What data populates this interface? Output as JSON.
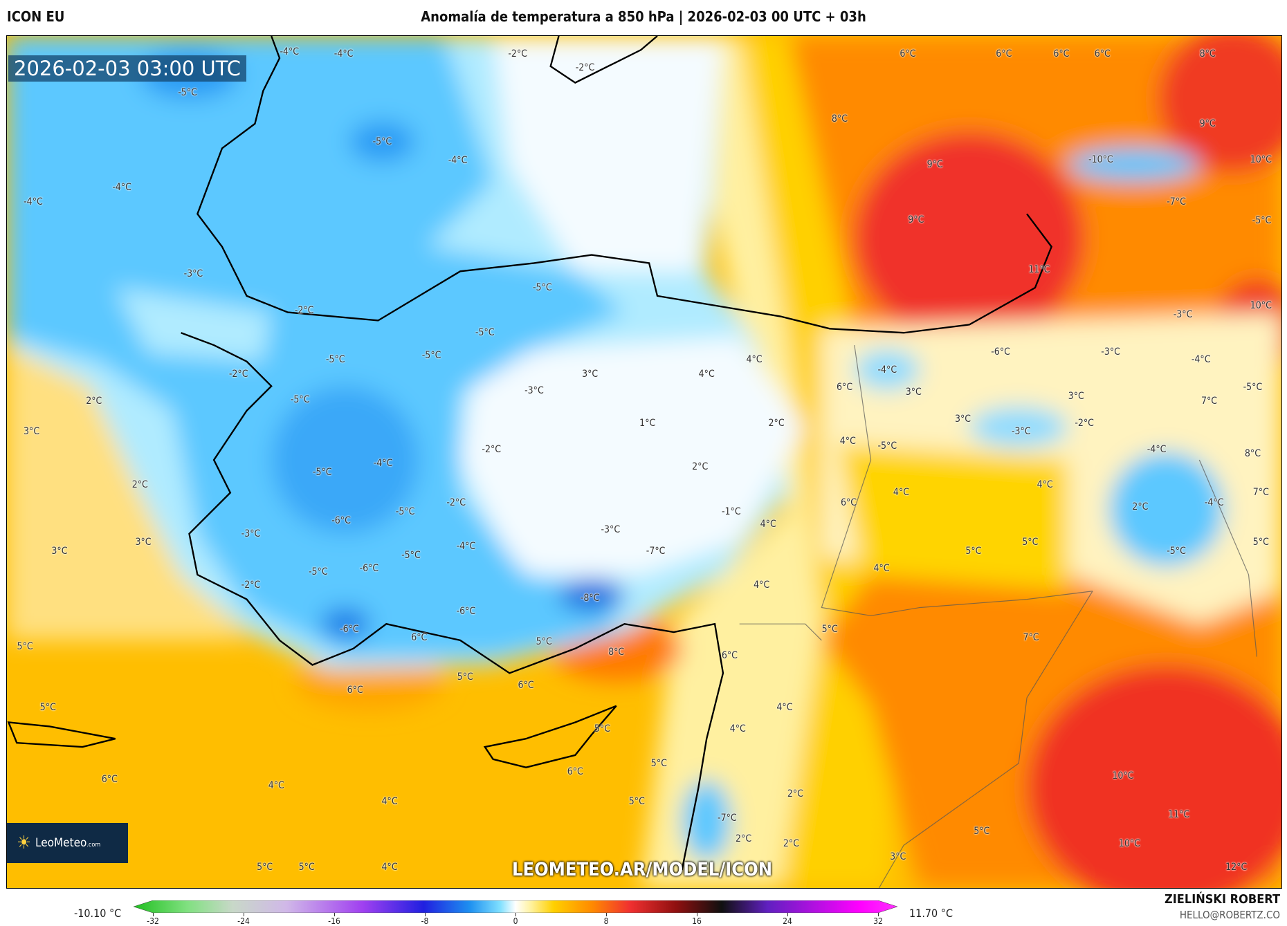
{
  "header": {
    "model": "ICON EU",
    "title": "Anomalía de temperatura a 850 hPa | 2026-02-03 00 UTC + 03h"
  },
  "map": {
    "valid_time": "2026-02-03 03:00 UTC",
    "watermark": "LEOMETEO.AR/MODEL/ICON",
    "logo": {
      "brand": "LeoMeteo",
      "suffix": ".com"
    },
    "labels": [
      "-4°C",
      "-4°C",
      "-2°C",
      "-2°C",
      "6°C",
      "6°C",
      "6°C",
      "6°C",
      "8°C",
      "-5°C",
      "-5°C",
      "-4°C",
      "8°C",
      "9°C",
      "9°C",
      "-10°C",
      "10°C",
      "-4°C",
      "-4°C",
      "-7°C",
      "-5°C",
      "9°C",
      "-3°C",
      "11°C",
      "-5°C",
      "-2°C",
      "10°C",
      "-3°C",
      "-5°C",
      "-5°C",
      "-5°C",
      "4°C",
      "-6°C",
      "-3°C",
      "-4°C",
      "-2°C",
      "3°C",
      "4°C",
      "-4°C",
      "-3°C",
      "6°C",
      "3°C",
      "3°C",
      "-5°C",
      "2°C",
      "-5°C",
      "1°C",
      "2°C",
      "3°C",
      "-3°C",
      "-2°C",
      "7°C",
      "3°C",
      "4°C",
      "-5°C",
      "-2°C",
      "-4°C",
      "-4°C",
      "8°C",
      "2°C",
      "-5°C",
      "2°C",
      "4°C",
      "4°C",
      "7°C",
      "-2°C",
      "6°C",
      "-4°C",
      "2°C",
      "-5°C",
      "-1°C",
      "-6°C",
      "4°C",
      "-3°C",
      "-3°C",
      "5°C",
      "3°C",
      "3°C",
      "-4°C",
      "-7°C",
      "5°C",
      "5°C",
      "-5°C",
      "-5°C",
      "-6°C",
      "-5°C",
      "4°C",
      "-2°C",
      "4°C",
      "-8°C",
      "-6°C",
      "-6°C",
      "6°C",
      "5°C",
      "7°C",
      "5°C",
      "5°C",
      "8°C",
      "6°C",
      "5°C",
      "6°C",
      "6°C",
      "5°C",
      "4°C",
      "5°C",
      "4°C",
      "5°C",
      "6°C",
      "6°C",
      "10°C",
      "4°C",
      "2°C",
      "5°C",
      "4°C",
      "11°C",
      "-7°C",
      "5°C",
      "2°C",
      "10°C",
      "3°C",
      "2°C",
      "5°C",
      "5°C",
      "4°C",
      "12°C"
    ],
    "colors": {
      "cold_deep": "#1e8ff0",
      "cold": "#5cc8ff",
      "cool": "#b0ebff",
      "neutral": "#f4fbff",
      "mild": "#fff3a0",
      "warm": "#ffc400",
      "hot": "#ff8a00",
      "very_hot": "#f0302a"
    }
  },
  "colorbar": {
    "min_label": "-10.10 °C",
    "max_label": "11.70 °C",
    "ticks": [
      "-32",
      "-24",
      "-16",
      "-8",
      "0",
      "8",
      "16",
      "24",
      "32"
    ],
    "range": [
      -32,
      32
    ]
  },
  "credits": {
    "author": "ZIELIŃSKI ROBERT",
    "email": "HELLO@ROBERTZ.CO"
  }
}
